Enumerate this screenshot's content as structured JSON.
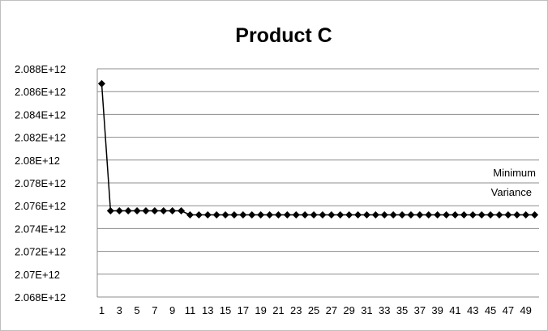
{
  "chart_data": {
    "type": "line",
    "title": "Product C",
    "xlabel": "",
    "ylabel": "",
    "x_tick_labels": [
      "1",
      "3",
      "5",
      "7",
      "9",
      "11",
      "13",
      "15",
      "17",
      "19",
      "21",
      "23",
      "25",
      "27",
      "29",
      "31",
      "33",
      "35",
      "37",
      "39",
      "41",
      "43",
      "45",
      "47",
      "49"
    ],
    "y_tick_labels": [
      "2.068E+12",
      "2.07E+12",
      "2.072E+12",
      "2.074E+12",
      "2.076E+12",
      "2.078E+12",
      "2.08E+12",
      "2.082E+12",
      "2.084E+12",
      "2.086E+12",
      "2.088E+12"
    ],
    "ylim": [
      2068000000000.0,
      2088000000000.0
    ],
    "xlim": [
      1,
      50
    ],
    "grid": true,
    "legend": "none",
    "annotation": [
      "Minimum",
      "Variance"
    ],
    "series": [
      {
        "color": "#000000",
        "marker": "diamond",
        "x": [
          1,
          2,
          3,
          4,
          5,
          6,
          7,
          8,
          9,
          10,
          11,
          12,
          13,
          14,
          15,
          16,
          17,
          18,
          19,
          20,
          21,
          22,
          23,
          24,
          25,
          26,
          27,
          28,
          29,
          30,
          31,
          32,
          33,
          34,
          35,
          36,
          37,
          38,
          39,
          40,
          41,
          42,
          43,
          44,
          45,
          46,
          47,
          48,
          49,
          50
        ],
        "values": [
          2086700000000.0,
          2075550000000.0,
          2075550000000.0,
          2075550000000.0,
          2075550000000.0,
          2075550000000.0,
          2075550000000.0,
          2075550000000.0,
          2075550000000.0,
          2075550000000.0,
          2075200000000.0,
          2075200000000.0,
          2075200000000.0,
          2075200000000.0,
          2075200000000.0,
          2075200000000.0,
          2075200000000.0,
          2075200000000.0,
          2075200000000.0,
          2075200000000.0,
          2075200000000.0,
          2075200000000.0,
          2075200000000.0,
          2075200000000.0,
          2075200000000.0,
          2075200000000.0,
          2075200000000.0,
          2075200000000.0,
          2075200000000.0,
          2075200000000.0,
          2075200000000.0,
          2075200000000.0,
          2075200000000.0,
          2075200000000.0,
          2075200000000.0,
          2075200000000.0,
          2075200000000.0,
          2075200000000.0,
          2075200000000.0,
          2075200000000.0,
          2075200000000.0,
          2075200000000.0,
          2075200000000.0,
          2075200000000.0,
          2075200000000.0,
          2075200000000.0,
          2075200000000.0,
          2075200000000.0,
          2075200000000.0,
          2075200000000.0
        ]
      }
    ]
  }
}
